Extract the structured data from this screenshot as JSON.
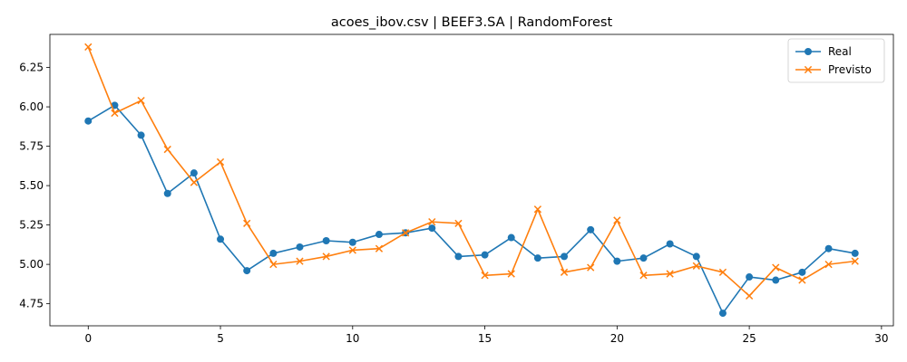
{
  "chart_data": {
    "type": "line",
    "title": "acoes_ibov.csv | BEEF3.SA | RandomForest",
    "xlabel": "",
    "ylabel": "",
    "xlim": [
      -1.45,
      30.45
    ],
    "ylim": [
      4.61,
      6.46
    ],
    "xticks": [
      0,
      5,
      10,
      15,
      20,
      25,
      30
    ],
    "yticks": [
      4.75,
      5.0,
      5.25,
      5.5,
      5.75,
      6.0,
      6.25
    ],
    "x": [
      0,
      1,
      2,
      3,
      4,
      5,
      6,
      7,
      8,
      9,
      10,
      11,
      12,
      13,
      14,
      15,
      16,
      17,
      18,
      19,
      20,
      21,
      22,
      23,
      24,
      25,
      26,
      27,
      28,
      29
    ],
    "series": [
      {
        "name": "Real",
        "color": "#1f77b4",
        "marker": "circle",
        "values": [
          5.91,
          6.01,
          5.82,
          5.45,
          5.58,
          5.16,
          4.96,
          5.07,
          5.11,
          5.15,
          5.14,
          5.19,
          5.2,
          5.23,
          5.05,
          5.06,
          5.17,
          5.04,
          5.05,
          5.22,
          5.02,
          5.04,
          5.13,
          5.05,
          4.69,
          4.92,
          4.9,
          4.95,
          5.1,
          5.07
        ]
      },
      {
        "name": "Previsto",
        "color": "#ff7f0e",
        "marker": "x",
        "values": [
          6.38,
          5.96,
          6.04,
          5.73,
          5.52,
          5.65,
          5.26,
          5.0,
          5.02,
          5.05,
          5.09,
          5.1,
          5.2,
          5.27,
          5.26,
          4.93,
          4.94,
          5.35,
          4.95,
          4.98,
          5.28,
          4.93,
          4.94,
          4.99,
          4.95,
          4.8,
          4.98,
          4.9,
          5.0,
          5.02
        ]
      }
    ],
    "legend": {
      "position": "top-right"
    },
    "grid": false
  }
}
